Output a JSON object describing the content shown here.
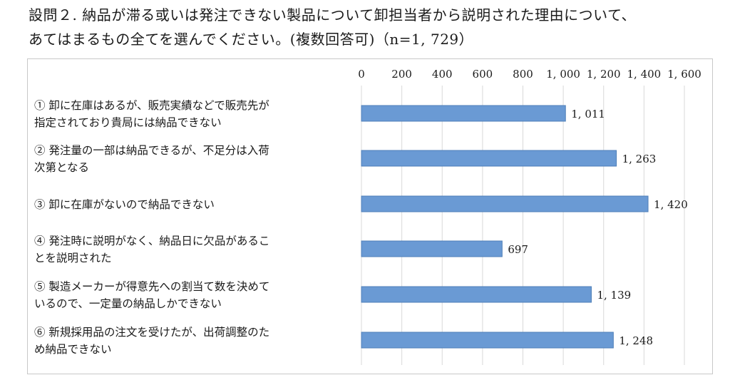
{
  "question": {
    "line1": "設問２. 納品が滞る或いは発注できない製品について卸担当者から説明された理由について、",
    "line2": "あてはまるもの全てを選んでください。(複数回答可)（n=1, 729）"
  },
  "chart_data": {
    "type": "bar",
    "orientation": "horizontal",
    "categories": [
      [
        "① 卸に在庫はあるが、販売実績などで販売先が",
        "指定されており貴局には納品できない"
      ],
      [
        "② 発注量の一部は納品できるが、不足分は入荷",
        "次第となる"
      ],
      [
        "③ 卸に在庫がないので納品できない"
      ],
      [
        "④ 発注時に説明がなく、納品日に欠品があるこ",
        "とを説明された"
      ],
      [
        "⑤ 製造メーカーが得意先への割当て数を決めて",
        "いるので、一定量の納品しかできない"
      ],
      [
        "⑥ 新規採用品の注文を受けたが、出荷調整のた",
        "め納品できない"
      ]
    ],
    "values": [
      1011,
      1263,
      1420,
      697,
      1139,
      1248
    ],
    "value_labels": [
      "1, 011",
      "1, 263",
      "1, 420",
      "697",
      "1, 139",
      "1, 248"
    ],
    "xlim": [
      0,
      1600
    ],
    "ticks": [
      0,
      200,
      400,
      600,
      800,
      1000,
      1200,
      1400,
      1600
    ],
    "tick_labels": [
      "0",
      "200",
      "400",
      "600",
      "800",
      "1, 000",
      "1, 200",
      "1, 400",
      "1, 600"
    ],
    "axis_position": "top",
    "grid": true,
    "bar_color": "#6a9ad4",
    "bar_edge_color": "#4f7fb8"
  }
}
